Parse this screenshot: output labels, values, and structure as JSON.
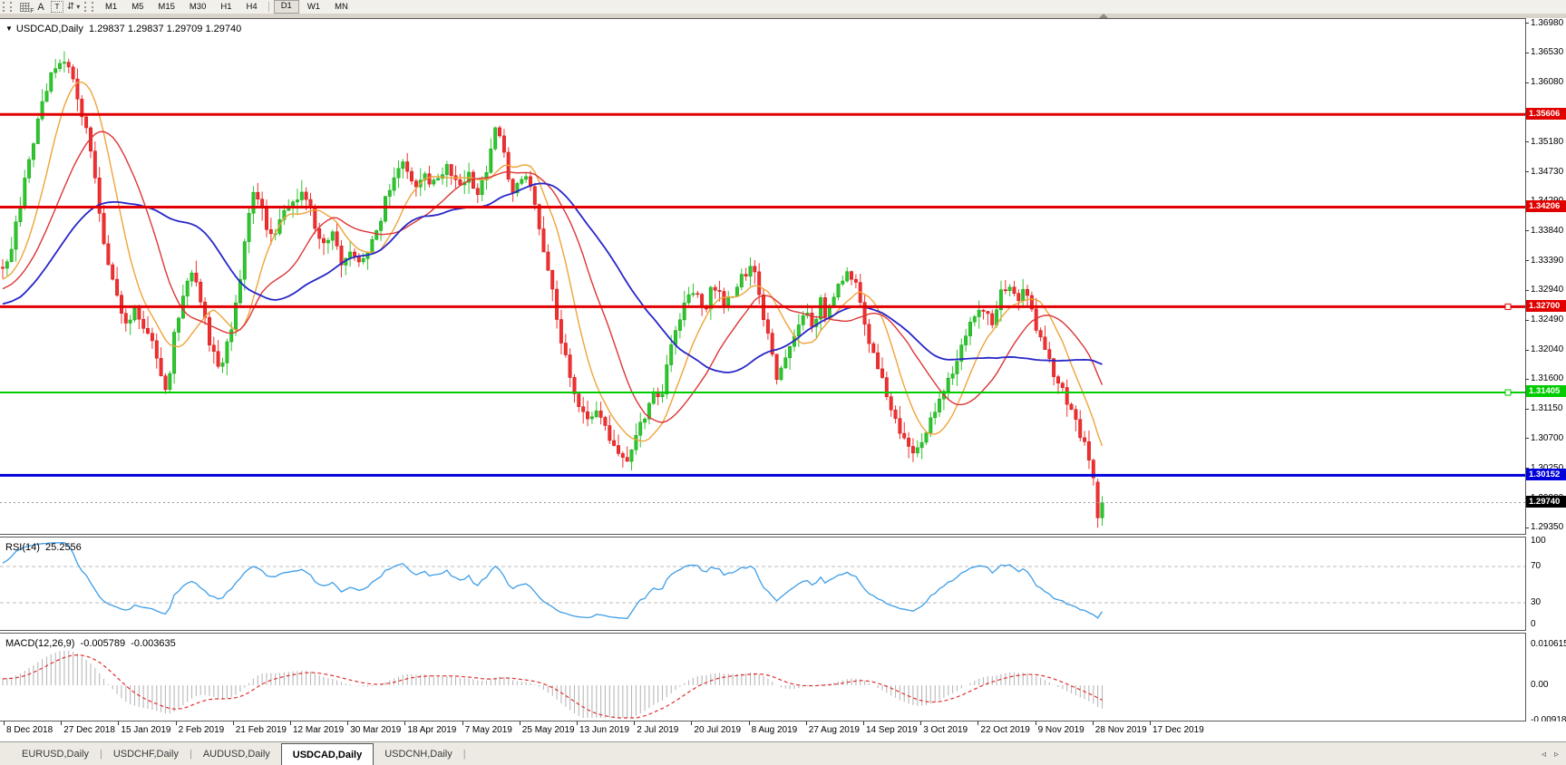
{
  "icons": {
    "dropdown_caret": "▾",
    "arrows_tool": "⇵",
    "collapse_triangle": "▼",
    "tab_scroll_left": "◃",
    "tab_scroll_right": "▹"
  },
  "toolbar": {
    "label_f": "F",
    "label_a": "A",
    "label_t": "T",
    "timeframes": {
      "items": [
        "M1",
        "M5",
        "M15",
        "M30",
        "H1",
        "H4",
        "D1",
        "W1",
        "MN"
      ],
      "active": "D1"
    }
  },
  "chart_header": {
    "symbol": "USDCAD,Daily",
    "ohlc": "1.29837 1.29837 1.29709 1.29740"
  },
  "rsi": {
    "label": "RSI(14)",
    "value": "25.2556",
    "axis": [
      "100",
      "70",
      "30",
      "0"
    ],
    "levels": [
      70,
      30
    ],
    "line_color": "#3E9EE8"
  },
  "macd": {
    "label": "MACD(12,26,9)",
    "value_main": "-0.005789",
    "value_signal": "-0.003635",
    "axis_top": "0.010615",
    "axis_zero": "0.00",
    "axis_bottom": "-0.009181",
    "hist_color": "#B8B8B8",
    "signal_color": "#E03030"
  },
  "tabs": {
    "items": [
      "EURUSD,Daily",
      "USDCHF,Daily",
      "AUDUSD,Daily",
      "USDCAD,Daily",
      "USDCNH,Daily"
    ],
    "active_index": 3
  },
  "colors": {
    "bull": "#2EC52E",
    "bull_stroke": "#17A317",
    "bear": "#F03030",
    "bear_stroke": "#CE1212",
    "ma_fast": "#EFA33A",
    "ma_mid": "#DD3535",
    "ma_slow": "#2626C8",
    "current_price_line": "#9a9a9a",
    "current_price_tag_bg": "#000000"
  },
  "chart_data": {
    "type": "candlestick",
    "symbol": "USDCAD",
    "timeframe": "Daily",
    "current_ohlc": {
      "open": 1.29837,
      "high": 1.29837,
      "low": 1.29709,
      "close": 1.2974
    },
    "y_ticks": [
      "1.36980",
      "1.36530",
      "1.36080",
      "1.35630",
      "1.35180",
      "1.34730",
      "1.34290",
      "1.33840",
      "1.33390",
      "1.32940",
      "1.32490",
      "1.32040",
      "1.31600",
      "1.31150",
      "1.30700",
      "1.30250",
      "1.29800",
      "1.29350"
    ],
    "x_labels": [
      "8 Dec 2018",
      "27 Dec 2018",
      "15 Jan 2019",
      "2 Feb 2019",
      "21 Feb 2019",
      "12 Mar 2019",
      "30 Mar 2019",
      "18 Apr 2019",
      "7 May 2019",
      "25 May 2019",
      "13 Jun 2019",
      "2 Jul 2019",
      "20 Jul 2019",
      "8 Aug 2019",
      "27 Aug 2019",
      "14 Sep 2019",
      "3 Oct 2019",
      "22 Oct 2019",
      "9 Nov 2019",
      "28 Nov 2019",
      "17 Dec 2019"
    ],
    "hlines": [
      {
        "value": 1.35606,
        "label": "1.35606",
        "color": "#E00000",
        "width": 3,
        "handle": false
      },
      {
        "value": 1.34206,
        "label": "1.34206",
        "color": "#E00000",
        "width": 3,
        "handle": false
      },
      {
        "value": 1.327,
        "label": "1.32700",
        "color": "#E00000",
        "width": 3,
        "handle": true
      },
      {
        "value": 1.31405,
        "label": "1.31405",
        "color": "#00CC00",
        "width": 2,
        "handle": true
      },
      {
        "value": 1.30152,
        "label": "1.30152",
        "color": "#0000DC",
        "width": 3,
        "handle": false
      }
    ],
    "current_price": {
      "value": 1.2974,
      "label": "1.29740"
    },
    "overlays": [
      {
        "name": "ma-fast",
        "period": 10,
        "color": "#EFA33A"
      },
      {
        "name": "ma-mid",
        "period": 21,
        "color": "#DD3535"
      },
      {
        "name": "ma-slow",
        "period": 40,
        "color": "#2626C8"
      }
    ],
    "indicators": [
      {
        "name": "RSI",
        "period": 14,
        "last": 25.2556,
        "levels": [
          70,
          30
        ],
        "bounds": [
          0,
          100
        ]
      },
      {
        "name": "MACD",
        "params": [
          12,
          26,
          9
        ],
        "last_main": -0.005789,
        "last_signal": -0.003635,
        "scale_top": 0.010615,
        "scale_bottom": -0.009181
      }
    ],
    "price_path": [
      [
        -170,
        1.3215
      ],
      [
        -120,
        1.3255
      ],
      [
        -70,
        1.3285
      ],
      [
        -30,
        1.33
      ],
      [
        -10,
        1.331
      ],
      [
        0,
        1.3325
      ],
      [
        12,
        1.3355
      ],
      [
        25,
        1.3445
      ],
      [
        38,
        1.353
      ],
      [
        50,
        1.359
      ],
      [
        62,
        1.364
      ],
      [
        72,
        1.3635
      ],
      [
        80,
        1.3615
      ],
      [
        88,
        1.357
      ],
      [
        98,
        1.353
      ],
      [
        108,
        1.343
      ],
      [
        118,
        1.334
      ],
      [
        128,
        1.329
      ],
      [
        138,
        1.3245
      ],
      [
        148,
        1.3265
      ],
      [
        158,
        1.3245
      ],
      [
        168,
        1.322
      ],
      [
        178,
        1.316
      ],
      [
        184,
        1.3135
      ],
      [
        192,
        1.323
      ],
      [
        202,
        1.329
      ],
      [
        212,
        1.332
      ],
      [
        222,
        1.328
      ],
      [
        232,
        1.321
      ],
      [
        242,
        1.317
      ],
      [
        252,
        1.322
      ],
      [
        262,
        1.328
      ],
      [
        272,
        1.339
      ],
      [
        279,
        1.345
      ],
      [
        287,
        1.343
      ],
      [
        296,
        1.337
      ],
      [
        306,
        1.339
      ],
      [
        316,
        1.3415
      ],
      [
        326,
        1.343
      ],
      [
        336,
        1.3445
      ],
      [
        346,
        1.34
      ],
      [
        356,
        1.336
      ],
      [
        366,
        1.338
      ],
      [
        376,
        1.334
      ],
      [
        386,
        1.3355
      ],
      [
        396,
        1.334
      ],
      [
        406,
        1.3355
      ],
      [
        416,
        1.338
      ],
      [
        426,
        1.344
      ],
      [
        436,
        1.3475
      ],
      [
        446,
        1.349
      ],
      [
        456,
        1.345
      ],
      [
        466,
        1.3475
      ],
      [
        476,
        1.3455
      ],
      [
        486,
        1.3475
      ],
      [
        496,
        1.348
      ],
      [
        506,
        1.345
      ],
      [
        516,
        1.3475
      ],
      [
        526,
        1.344
      ],
      [
        536,
        1.347
      ],
      [
        545,
        1.3545
      ],
      [
        552,
        1.353
      ],
      [
        560,
        1.347
      ],
      [
        568,
        1.344
      ],
      [
        576,
        1.347
      ],
      [
        584,
        1.3455
      ],
      [
        592,
        1.341
      ],
      [
        600,
        1.335
      ],
      [
        608,
        1.33
      ],
      [
        616,
        1.324
      ],
      [
        624,
        1.319
      ],
      [
        632,
        1.314
      ],
      [
        640,
        1.311
      ],
      [
        648,
        1.3095
      ],
      [
        656,
        1.312
      ],
      [
        664,
        1.3105
      ],
      [
        672,
        1.307
      ],
      [
        680,
        1.3055
      ],
      [
        688,
        1.3035
      ],
      [
        696,
        1.3055
      ],
      [
        704,
        1.3085
      ],
      [
        712,
        1.311
      ],
      [
        720,
        1.3145
      ],
      [
        728,
        1.312
      ],
      [
        736,
        1.318
      ],
      [
        744,
        1.323
      ],
      [
        752,
        1.326
      ],
      [
        760,
        1.3285
      ],
      [
        768,
        1.3295
      ],
      [
        776,
        1.3255
      ],
      [
        784,
        1.33
      ],
      [
        792,
        1.329
      ],
      [
        800,
        1.327
      ],
      [
        808,
        1.329
      ],
      [
        816,
        1.331
      ],
      [
        824,
        1.3325
      ],
      [
        832,
        1.333
      ],
      [
        840,
        1.327
      ],
      [
        848,
        1.322
      ],
      [
        856,
        1.316
      ],
      [
        864,
        1.318
      ],
      [
        872,
        1.321
      ],
      [
        880,
        1.3245
      ],
      [
        888,
        1.3265
      ],
      [
        896,
        1.3235
      ],
      [
        904,
        1.328
      ],
      [
        912,
        1.3255
      ],
      [
        920,
        1.329
      ],
      [
        928,
        1.331
      ],
      [
        936,
        1.333
      ],
      [
        944,
        1.33
      ],
      [
        952,
        1.325
      ],
      [
        960,
        1.3215
      ],
      [
        968,
        1.318
      ],
      [
        976,
        1.315
      ],
      [
        984,
        1.3115
      ],
      [
        992,
        1.3085
      ],
      [
        1000,
        1.306
      ],
      [
        1008,
        1.3045
      ],
      [
        1016,
        1.3065
      ],
      [
        1024,
        1.309
      ],
      [
        1032,
        1.3115
      ],
      [
        1040,
        1.314
      ],
      [
        1048,
        1.3165
      ],
      [
        1056,
        1.3195
      ],
      [
        1064,
        1.3225
      ],
      [
        1072,
        1.325
      ],
      [
        1080,
        1.3265
      ],
      [
        1088,
        1.326
      ],
      [
        1096,
        1.324
      ],
      [
        1104,
        1.329
      ],
      [
        1112,
        1.3305
      ],
      [
        1120,
        1.328
      ],
      [
        1128,
        1.3295
      ],
      [
        1136,
        1.327
      ],
      [
        1144,
        1.3235
      ],
      [
        1152,
        1.3205
      ],
      [
        1160,
        1.3175
      ],
      [
        1168,
        1.315
      ],
      [
        1176,
        1.313
      ],
      [
        1184,
        1.311
      ],
      [
        1190,
        1.3085
      ],
      [
        1196,
        1.306
      ],
      [
        1202,
        1.303
      ],
      [
        1207,
        1.3
      ],
      [
        1212,
        1.296
      ],
      [
        1216,
        1.2945
      ],
      [
        1219,
        1.2974
      ]
    ]
  }
}
